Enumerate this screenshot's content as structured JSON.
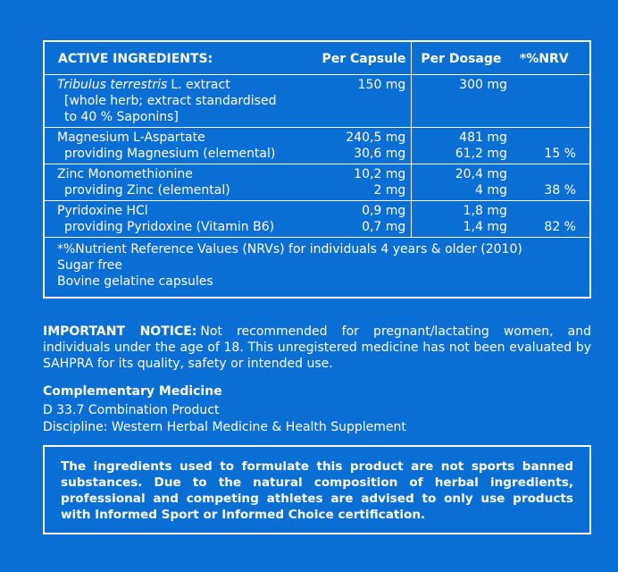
{
  "table": {
    "header": [
      "ACTIVE INGREDIENTS:",
      "Per Capsule",
      "Per Dosage",
      "*%NRV"
    ],
    "rows": [
      {
        "name_italic": "Tribulus terrestris",
        "name": [
          "L. extract",
          "[whole herb; extract standardised",
          "to 40 % Saponins]"
        ],
        "capsule": [
          "150 mg"
        ],
        "dosage": [
          "300 mg"
        ]
      },
      {
        "name": [
          "Magnesium L-Aspartate",
          "providing Magnesium (elemental)"
        ],
        "capsule": [
          "240,5 mg",
          "30,6 mg"
        ],
        "dosage": [
          "481 mg",
          "61,2 mg"
        ],
        "nrv": "15 %"
      },
      {
        "name": [
          "Zinc Monomethionine",
          "providing Zinc (elemental)"
        ],
        "capsule": [
          "10,2 mg",
          "2 mg"
        ],
        "dosage": [
          "20,4 mg",
          "4 mg"
        ],
        "nrv": "38 %"
      },
      {
        "name": [
          "Pyridoxine HCl",
          "providing Pyridoxine (Vitamin B6)"
        ],
        "capsule": [
          "0,9 mg",
          "0,7 mg"
        ],
        "dosage": [
          "1,8 mg",
          "1,4 mg"
        ],
        "nrv": "82 %"
      }
    ],
    "notes": [
      "*%Nutrient Reference Values (NRVs) for individuals 4 years & older (2010)",
      "Sugar free",
      "Bovine gelatine capsules"
    ]
  },
  "notice": {
    "label": "IMPORTANT NOTICE:",
    "text": "Not recommended for pregnant/lactating women, and individuals under the age of 18. This unregistered medicine has not been evaluated by SAHPRA for its quality, safety or intended use."
  },
  "classification": {
    "title": "Complementary Medicine",
    "lines": [
      "D 33.7 Combination Product",
      "Discipline: Western Herbal Medicine & Health Supplement"
    ]
  },
  "sport_notice": "The ingredients used to formulate this product are not sports banned substances. Due to the natural composition of herbal ingredients, professional and competing athletes are advised to only use products with Informed Sport or Informed Choice certification."
}
